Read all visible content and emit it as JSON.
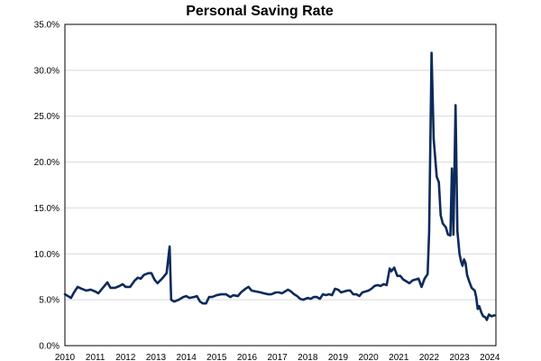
{
  "chart_data": {
    "type": "line",
    "title": "Personal Saving Rate",
    "xlabel": "",
    "ylabel": "",
    "xlim": [
      2010,
      2024.2
    ],
    "ylim": [
      0,
      35
    ],
    "x_ticks": [
      2010,
      2011,
      2012,
      2013,
      2014,
      2015,
      2016,
      2017,
      2018,
      2019,
      2020,
      2021,
      2022,
      2023,
      2024
    ],
    "y_ticks": [
      0,
      5,
      10,
      15,
      20,
      25,
      30,
      35
    ],
    "y_tick_labels": [
      "0.0%",
      "5.0%",
      "10.0%",
      "15.0%",
      "20.0%",
      "25.0%",
      "30.0%",
      "35.0%"
    ],
    "grid": "horizontal",
    "legend": "none",
    "series": [
      {
        "color": "#0d2a5c",
        "points": [
          [
            2010.0,
            5.6
          ],
          [
            2010.1,
            5.4
          ],
          [
            2010.2,
            5.2
          ],
          [
            2010.3,
            5.8
          ],
          [
            2010.42,
            6.4
          ],
          [
            2010.55,
            6.2
          ],
          [
            2010.7,
            6.0
          ],
          [
            2010.85,
            6.1
          ],
          [
            2011.0,
            5.9
          ],
          [
            2011.1,
            5.7
          ],
          [
            2011.25,
            6.3
          ],
          [
            2011.4,
            6.9
          ],
          [
            2011.5,
            6.3
          ],
          [
            2011.65,
            6.3
          ],
          [
            2011.8,
            6.5
          ],
          [
            2011.9,
            6.7
          ],
          [
            2012.0,
            6.4
          ],
          [
            2012.15,
            6.4
          ],
          [
            2012.3,
            7.1
          ],
          [
            2012.4,
            7.4
          ],
          [
            2012.5,
            7.3
          ],
          [
            2012.6,
            7.7
          ],
          [
            2012.75,
            7.9
          ],
          [
            2012.85,
            7.9
          ],
          [
            2012.95,
            7.2
          ],
          [
            2013.05,
            6.8
          ],
          [
            2013.2,
            7.3
          ],
          [
            2013.35,
            7.9
          ],
          [
            2013.45,
            10.8
          ],
          [
            2013.5,
            5.0
          ],
          [
            2013.6,
            4.8
          ],
          [
            2013.75,
            5.0
          ],
          [
            2013.9,
            5.3
          ],
          [
            2014.0,
            5.4
          ],
          [
            2014.1,
            5.2
          ],
          [
            2014.25,
            5.3
          ],
          [
            2014.35,
            5.4
          ],
          [
            2014.45,
            4.8
          ],
          [
            2014.55,
            4.6
          ],
          [
            2014.65,
            4.6
          ],
          [
            2014.75,
            5.3
          ],
          [
            2014.85,
            5.3
          ],
          [
            2015.0,
            5.5
          ],
          [
            2015.15,
            5.6
          ],
          [
            2015.3,
            5.6
          ],
          [
            2015.45,
            5.3
          ],
          [
            2015.55,
            5.5
          ],
          [
            2015.7,
            5.4
          ],
          [
            2015.8,
            5.8
          ],
          [
            2015.95,
            6.2
          ],
          [
            2016.05,
            6.4
          ],
          [
            2016.15,
            6.0
          ],
          [
            2016.3,
            5.9
          ],
          [
            2016.45,
            5.8
          ],
          [
            2016.55,
            5.7
          ],
          [
            2016.7,
            5.6
          ],
          [
            2016.8,
            5.6
          ],
          [
            2016.95,
            5.8
          ],
          [
            2017.05,
            5.8
          ],
          [
            2017.15,
            5.7
          ],
          [
            2017.25,
            5.9
          ],
          [
            2017.35,
            6.1
          ],
          [
            2017.45,
            5.9
          ],
          [
            2017.55,
            5.6
          ],
          [
            2017.65,
            5.4
          ],
          [
            2017.75,
            5.1
          ],
          [
            2017.85,
            5.0
          ],
          [
            2018.0,
            5.2
          ],
          [
            2018.1,
            5.1
          ],
          [
            2018.2,
            5.3
          ],
          [
            2018.3,
            5.3
          ],
          [
            2018.4,
            5.1
          ],
          [
            2018.5,
            5.6
          ],
          [
            2018.6,
            5.5
          ],
          [
            2018.7,
            5.6
          ],
          [
            2018.8,
            5.5
          ],
          [
            2018.9,
            6.2
          ],
          [
            2019.0,
            6.1
          ],
          [
            2019.1,
            5.8
          ],
          [
            2019.2,
            5.9
          ],
          [
            2019.3,
            6.0
          ],
          [
            2019.4,
            6.0
          ],
          [
            2019.5,
            5.6
          ],
          [
            2019.6,
            5.6
          ],
          [
            2019.7,
            5.4
          ],
          [
            2019.8,
            5.8
          ],
          [
            2019.9,
            5.9
          ],
          [
            2020.0,
            6.0
          ],
          [
            2020.1,
            6.2
          ],
          [
            2020.2,
            6.5
          ],
          [
            2020.3,
            6.6
          ],
          [
            2020.4,
            6.5
          ],
          [
            2020.5,
            6.7
          ],
          [
            2020.6,
            6.6
          ],
          [
            2020.7,
            8.4
          ],
          [
            2020.75,
            8.1
          ],
          [
            2020.85,
            8.5
          ],
          [
            2020.95,
            7.6
          ],
          [
            2021.05,
            7.6
          ],
          [
            2021.15,
            7.2
          ],
          [
            2021.25,
            7.0
          ],
          [
            2021.35,
            6.8
          ],
          [
            2021.45,
            7.1
          ],
          [
            2021.55,
            7.2
          ],
          [
            2021.65,
            7.3
          ],
          [
            2021.75,
            6.4
          ],
          [
            2021.85,
            7.3
          ],
          [
            2021.95,
            7.8
          ],
          [
            2022.0,
            12.4
          ],
          [
            2022.08,
            31.9
          ],
          [
            2022.15,
            22.5
          ],
          [
            2022.25,
            18.4
          ],
          [
            2022.32,
            17.8
          ],
          [
            2022.38,
            14.2
          ],
          [
            2022.45,
            13.3
          ],
          [
            2022.55,
            12.9
          ],
          [
            2022.62,
            12.1
          ],
          [
            2022.7,
            12.0
          ],
          [
            2022.75,
            19.3
          ],
          [
            2022.8,
            12.1
          ],
          [
            2022.87,
            26.2
          ],
          [
            2022.93,
            12.5
          ],
          [
            2023.0,
            10.0
          ],
          [
            2023.05,
            9.2
          ],
          [
            2023.1,
            8.7
          ],
          [
            2023.15,
            9.4
          ],
          [
            2023.2,
            9.0
          ],
          [
            2023.25,
            7.7
          ],
          [
            2023.32,
            7.0
          ],
          [
            2023.4,
            6.3
          ],
          [
            2023.5,
            6.0
          ],
          [
            2023.55,
            5.3
          ],
          [
            2023.6,
            4.0
          ],
          [
            2023.65,
            4.3
          ],
          [
            2023.72,
            3.6
          ],
          [
            2023.78,
            3.2
          ],
          [
            2023.85,
            3.1
          ],
          [
            2023.9,
            2.8
          ],
          [
            2023.97,
            3.4
          ],
          [
            2024.05,
            3.2
          ],
          [
            2024.15,
            3.3
          ]
        ]
      }
    ]
  }
}
